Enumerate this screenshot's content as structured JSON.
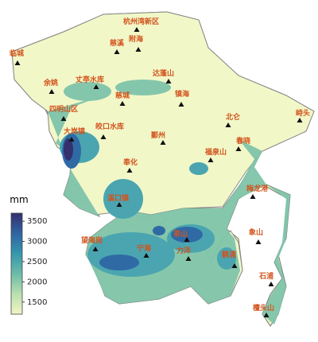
{
  "legend": {
    "unit": "mm",
    "range": [
      1200,
      3700
    ],
    "ticks": [
      1500,
      2000,
      2500,
      3000,
      3500
    ],
    "colormap": [
      "#f1f5c5",
      "#b9dfae",
      "#6cbba8",
      "#3597ae",
      "#2f64a3",
      "#352f6e"
    ]
  },
  "stations": [
    "杭州湾新区",
    "慈溪",
    "附海",
    "临城",
    "余姚",
    "丈亭水库",
    "达蓬山",
    "慈城",
    "镇海",
    "四明山区",
    "大岚镇",
    "皎口水库",
    "北仑",
    "峙头",
    "鄞州",
    "春晓",
    "福泉山",
    "奉化",
    "梅龙港",
    "溪口镇",
    "象山",
    "望海岗",
    "宁海",
    "茶山",
    "力洋",
    "鹤浦",
    "石浦",
    "檀头山"
  ]
}
